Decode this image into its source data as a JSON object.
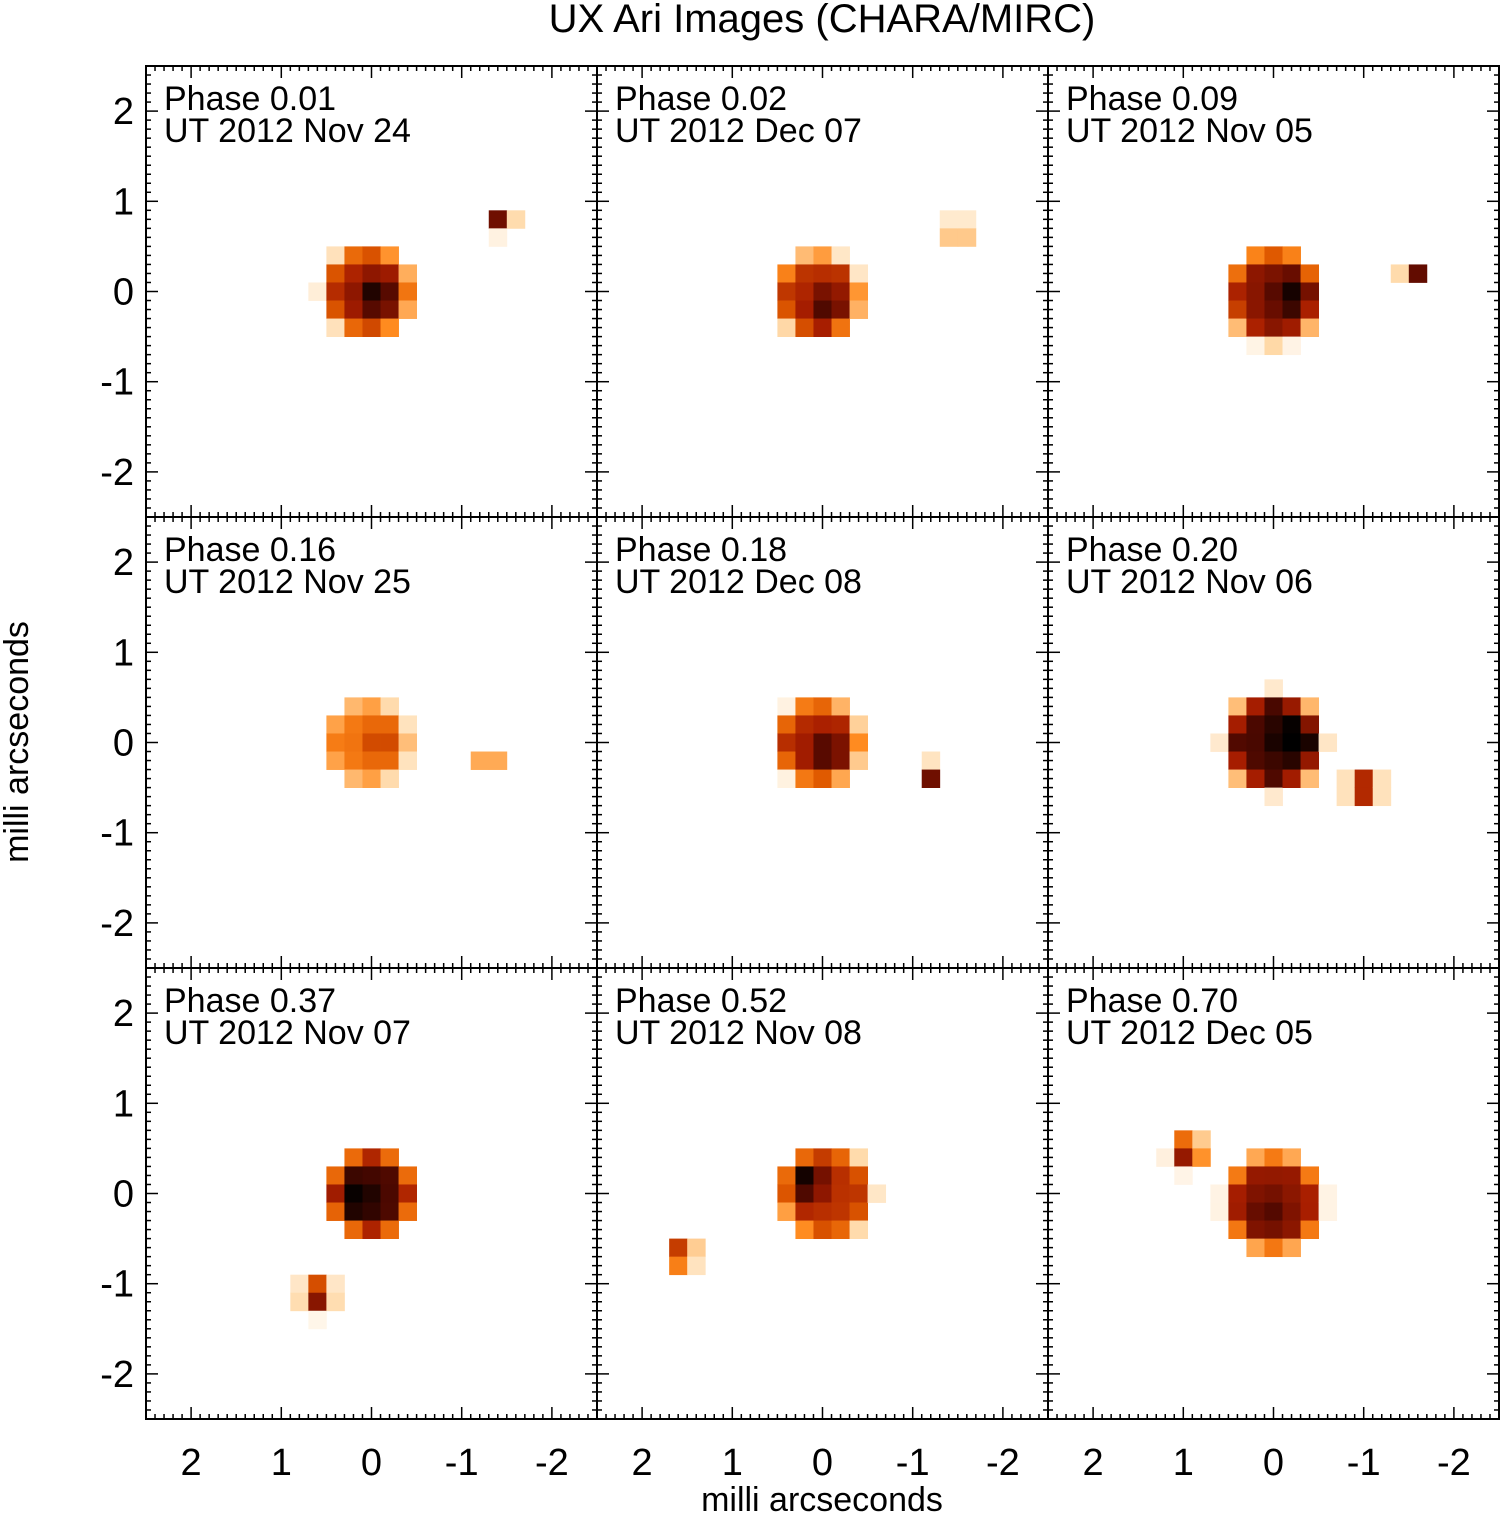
{
  "chart_data": {
    "type": "heatmap",
    "title": "UX Ari Images (CHARA/MIRC)",
    "xlabel": "milli arcseconds",
    "ylabel": "milli arcseconds",
    "xlim": [
      2.5,
      -2.5
    ],
    "ylim": [
      -2.5,
      2.5
    ],
    "x_ticks": [
      2,
      1,
      0,
      -1,
      -2
    ],
    "y_ticks": [
      2,
      1,
      0,
      -1,
      -2
    ],
    "x_tick_labels": [
      "2",
      "1",
      "0",
      "-1",
      "-2"
    ],
    "y_tick_labels": [
      "2",
      "1",
      "0",
      "-1",
      "-2"
    ],
    "grid": false,
    "colormap": [
      "#ffffff",
      "#ffd9a8",
      "#ff8a1e",
      "#e05a00",
      "#a81e00",
      "#5a0a00",
      "#000000"
    ],
    "panels": [
      {
        "phase_label": "Phase 0.01",
        "date_label": "UT 2012 Nov 24",
        "primary": {
          "x": 0.05,
          "y": 0.0,
          "radius": 0.46,
          "peak": 0.62,
          "hot": {
            "x": -0.05,
            "y": -0.05,
            "amp": 0.35
          }
        },
        "companion": {
          "x": -1.45,
          "y": 0.78,
          "radius": 0.14,
          "peak": 1.0
        }
      },
      {
        "phase_label": "Phase 0.02",
        "date_label": "UT 2012 Dec 07",
        "primary": {
          "x": 0.05,
          "y": -0.05,
          "radius": 0.44,
          "peak": 0.6,
          "hot": {
            "x": -0.05,
            "y": -0.15,
            "amp": 0.28
          }
        },
        "companion": {
          "x": -1.5,
          "y": 0.68,
          "radius": 0.13,
          "peak": 0.95
        }
      },
      {
        "phase_label": "Phase 0.09",
        "date_label": "UT 2012 Nov 05",
        "primary": {
          "x": 0.0,
          "y": -0.05,
          "radius": 0.48,
          "peak": 0.72,
          "hot": {
            "x": -0.2,
            "y": -0.05,
            "amp": 0.25
          }
        },
        "companion": {
          "x": -1.55,
          "y": 0.2,
          "radius": 0.14,
          "peak": 1.0
        }
      },
      {
        "phase_label": "Phase 0.16",
        "date_label": "UT 2012 Nov 25",
        "primary": {
          "x": 0.05,
          "y": 0.0,
          "radius": 0.44,
          "peak": 0.38,
          "hot": {
            "x": -0.1,
            "y": 0.0,
            "amp": 0.2
          }
        },
        "companion": {
          "x": -1.3,
          "y": -0.2,
          "radius": 0.11,
          "peak": 1.0
        }
      },
      {
        "phase_label": "Phase 0.18",
        "date_label": "UT 2012 Dec 08",
        "primary": {
          "x": 0.05,
          "y": 0.0,
          "radius": 0.44,
          "peak": 0.62,
          "hot": {
            "x": -0.05,
            "y": -0.1,
            "amp": 0.28
          }
        },
        "companion": {
          "x": -1.2,
          "y": -0.35,
          "radius": 0.13,
          "peak": 1.0
        }
      },
      {
        "phase_label": "Phase 0.20",
        "date_label": "UT 2012 Nov 06",
        "primary": {
          "x": 0.0,
          "y": 0.0,
          "radius": 0.5,
          "peak": 0.85,
          "hot": {
            "x": -0.2,
            "y": 0.05,
            "amp": 0.2
          }
        },
        "companion": {
          "x": -1.0,
          "y": -0.5,
          "radius": 0.2,
          "peak": 0.95
        }
      },
      {
        "phase_label": "Phase 0.37",
        "date_label": "UT 2012 Nov 07",
        "primary": {
          "x": 0.0,
          "y": 0.0,
          "radius": 0.44,
          "peak": 0.85,
          "hot": {
            "x": 0.15,
            "y": -0.05,
            "amp": 0.15
          }
        },
        "companion": {
          "x": 0.6,
          "y": -1.12,
          "radius": 0.2,
          "peak": 0.95
        }
      },
      {
        "phase_label": "Phase 0.52",
        "date_label": "UT 2012 Nov 08",
        "primary": {
          "x": -0.05,
          "y": 0.0,
          "radius": 0.47,
          "peak": 0.6,
          "hot": {
            "x": 0.2,
            "y": 0.15,
            "amp": 0.38
          }
        },
        "companion": {
          "x": 1.55,
          "y": -0.68,
          "radius": 0.17,
          "peak": 0.95
        }
      },
      {
        "phase_label": "Phase 0.70",
        "date_label": "UT 2012 Dec 05",
        "primary": {
          "x": 0.0,
          "y": -0.1,
          "radius": 0.5,
          "peak": 0.7,
          "hot": {
            "x": 0.05,
            "y": -0.2,
            "amp": 0.15
          }
        },
        "companion": {
          "x": 0.95,
          "y": 0.47,
          "radius": 0.2,
          "peak": 0.95
        }
      }
    ]
  }
}
